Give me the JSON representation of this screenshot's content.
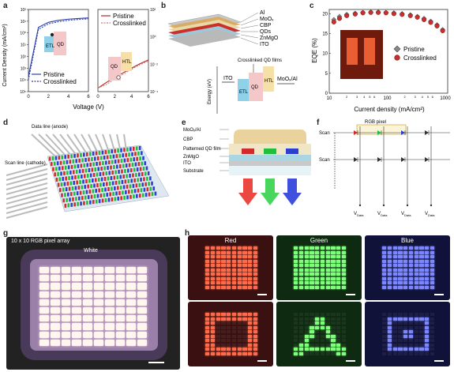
{
  "labels": {
    "a": "a",
    "b": "b",
    "c": "c",
    "d": "d",
    "e": "e",
    "f": "f",
    "g": "g",
    "h": "h"
  },
  "panel_a": {
    "y_left_label": "Current Density (mA/cm²)",
    "x_label": "Voltage (V)",
    "left_legend": [
      "Pristine",
      "Crosslinked"
    ],
    "right_legend": [
      "Pristine",
      "Crosslinked"
    ],
    "inset_left": {
      "etl": "ETL",
      "qd": "QD"
    },
    "inset_right": {
      "qd": "QD",
      "htl": "HTL"
    },
    "colors": {
      "pristine_left": "#2c3fa8",
      "crosslinked_left": "#2c3fa8",
      "pristine_right": "#b52424",
      "crosslinked_right": "#c47f7f"
    }
  },
  "panel_b": {
    "layers": [
      "Al",
      "MoOₓ",
      "CBP",
      "QDs",
      "ZnMgO",
      "ITO"
    ],
    "crosslinked_label": "Crosslinked QD films",
    "energy_label": "Energy (eV)",
    "band_labels": {
      "ito": "ITO",
      "etl": "ETL",
      "qd": "QD",
      "htl": "HTL",
      "moo": "MoOₓ/Al"
    }
  },
  "panel_c": {
    "y_label": "EQE (%)",
    "x_label": "Current density (mA/cm²)",
    "legend": [
      "Pristine",
      "Crosslinked"
    ]
  },
  "panel_d": {
    "data_line": "Data line\n(anode)",
    "scan_line": "Scan line\n(cathode)"
  },
  "panel_e": {
    "layers": [
      "MoOₓ/Al",
      "CBP",
      "Patterned QD film",
      "ZnMgO",
      "ITO",
      "Substrate"
    ]
  },
  "panel_f": {
    "rgb_pixel": "RGB pixel",
    "scan": [
      "Scan",
      "Scan"
    ],
    "vdata": [
      "Vₐₐₐₐ",
      "Vₐₐₐₐ",
      "Vₐₐₐₐ",
      "Vₐₐₐₐ"
    ],
    "vdata_text": "V",
    "vdata_sub": "Data"
  },
  "panel_g": {
    "title": "10 x 10 RGB pixel array",
    "white": "White"
  },
  "panel_h": {
    "titles": [
      "Red",
      "Green",
      "Blue"
    ]
  },
  "chart_data": [
    {
      "type": "line",
      "title": "",
      "xlabel": "Voltage (V)",
      "ylabel": "Current Density (mA/cm²)",
      "xlim": [
        0,
        6
      ],
      "ylim_log": [
        1e-05,
        100
      ],
      "y_ticks": [
        "10⁵",
        "10⁴",
        "10³",
        "10²",
        "10¹",
        "10⁰",
        "10¹",
        "10²"
      ],
      "x_ticks": [
        0,
        2,
        4,
        6
      ],
      "series": [
        {
          "name": "Pristine",
          "x": [
            0,
            1,
            2,
            3,
            4,
            5,
            6
          ],
          "y": [
            0.0002,
            3,
            8,
            12,
            15,
            17,
            19
          ]
        },
        {
          "name": "Crosslinked",
          "x": [
            0,
            1,
            2,
            3,
            4,
            5,
            6
          ],
          "y": [
            0.0001,
            2,
            6,
            9,
            12,
            14,
            16
          ]
        }
      ]
    },
    {
      "type": "line",
      "title": "",
      "xlabel": "Voltage (V)",
      "ylabel": "",
      "xlim": [
        0,
        6
      ],
      "x_ticks": [
        0,
        2,
        4,
        6
      ],
      "series": [
        {
          "name": "Pristine",
          "x": [
            0,
            1,
            2,
            3,
            4,
            5,
            6
          ],
          "y": [
            0.01,
            0.03,
            0.08,
            0.2,
            0.5,
            1.2,
            2.5
          ]
        },
        {
          "name": "Crosslinked",
          "x": [
            0,
            1,
            2,
            3,
            4,
            5,
            6
          ],
          "y": [
            0.01,
            0.02,
            0.06,
            0.15,
            0.4,
            1.0,
            2.0
          ]
        }
      ]
    },
    {
      "type": "scatter",
      "title": "",
      "xlabel": "Current density (mA/cm²)",
      "ylabel": "EQE (%)",
      "xlim_log": [
        10,
        1000
      ],
      "ylim": [
        0,
        20
      ],
      "y_ticks": [
        0,
        5,
        10,
        15,
        20
      ],
      "x_tick_labels": [
        "10",
        "2",
        "3",
        "4",
        "5",
        "6",
        "100",
        "2",
        "3",
        "4",
        "5",
        "6",
        "1000"
      ],
      "series": [
        {
          "name": "Pristine",
          "x": [
            12,
            15,
            20,
            28,
            38,
            52,
            70,
            95,
            130,
            180,
            250,
            330,
            430,
            560,
            720,
            900
          ],
          "y": [
            18.5,
            19.3,
            19.8,
            20.1,
            20.3,
            20.4,
            20.4,
            20.3,
            20.2,
            20.0,
            19.7,
            19.3,
            18.8,
            18.1,
            17.2,
            16.0
          ]
        },
        {
          "name": "Crosslinked",
          "x": [
            12,
            15,
            20,
            28,
            38,
            52,
            70,
            95,
            130,
            180,
            250,
            330,
            430,
            560,
            720,
            900
          ],
          "y": [
            18.0,
            18.9,
            19.6,
            20.0,
            20.3,
            20.4,
            20.4,
            20.3,
            20.1,
            19.9,
            19.6,
            19.2,
            18.6,
            17.9,
            17.0,
            15.8
          ]
        }
      ]
    }
  ]
}
